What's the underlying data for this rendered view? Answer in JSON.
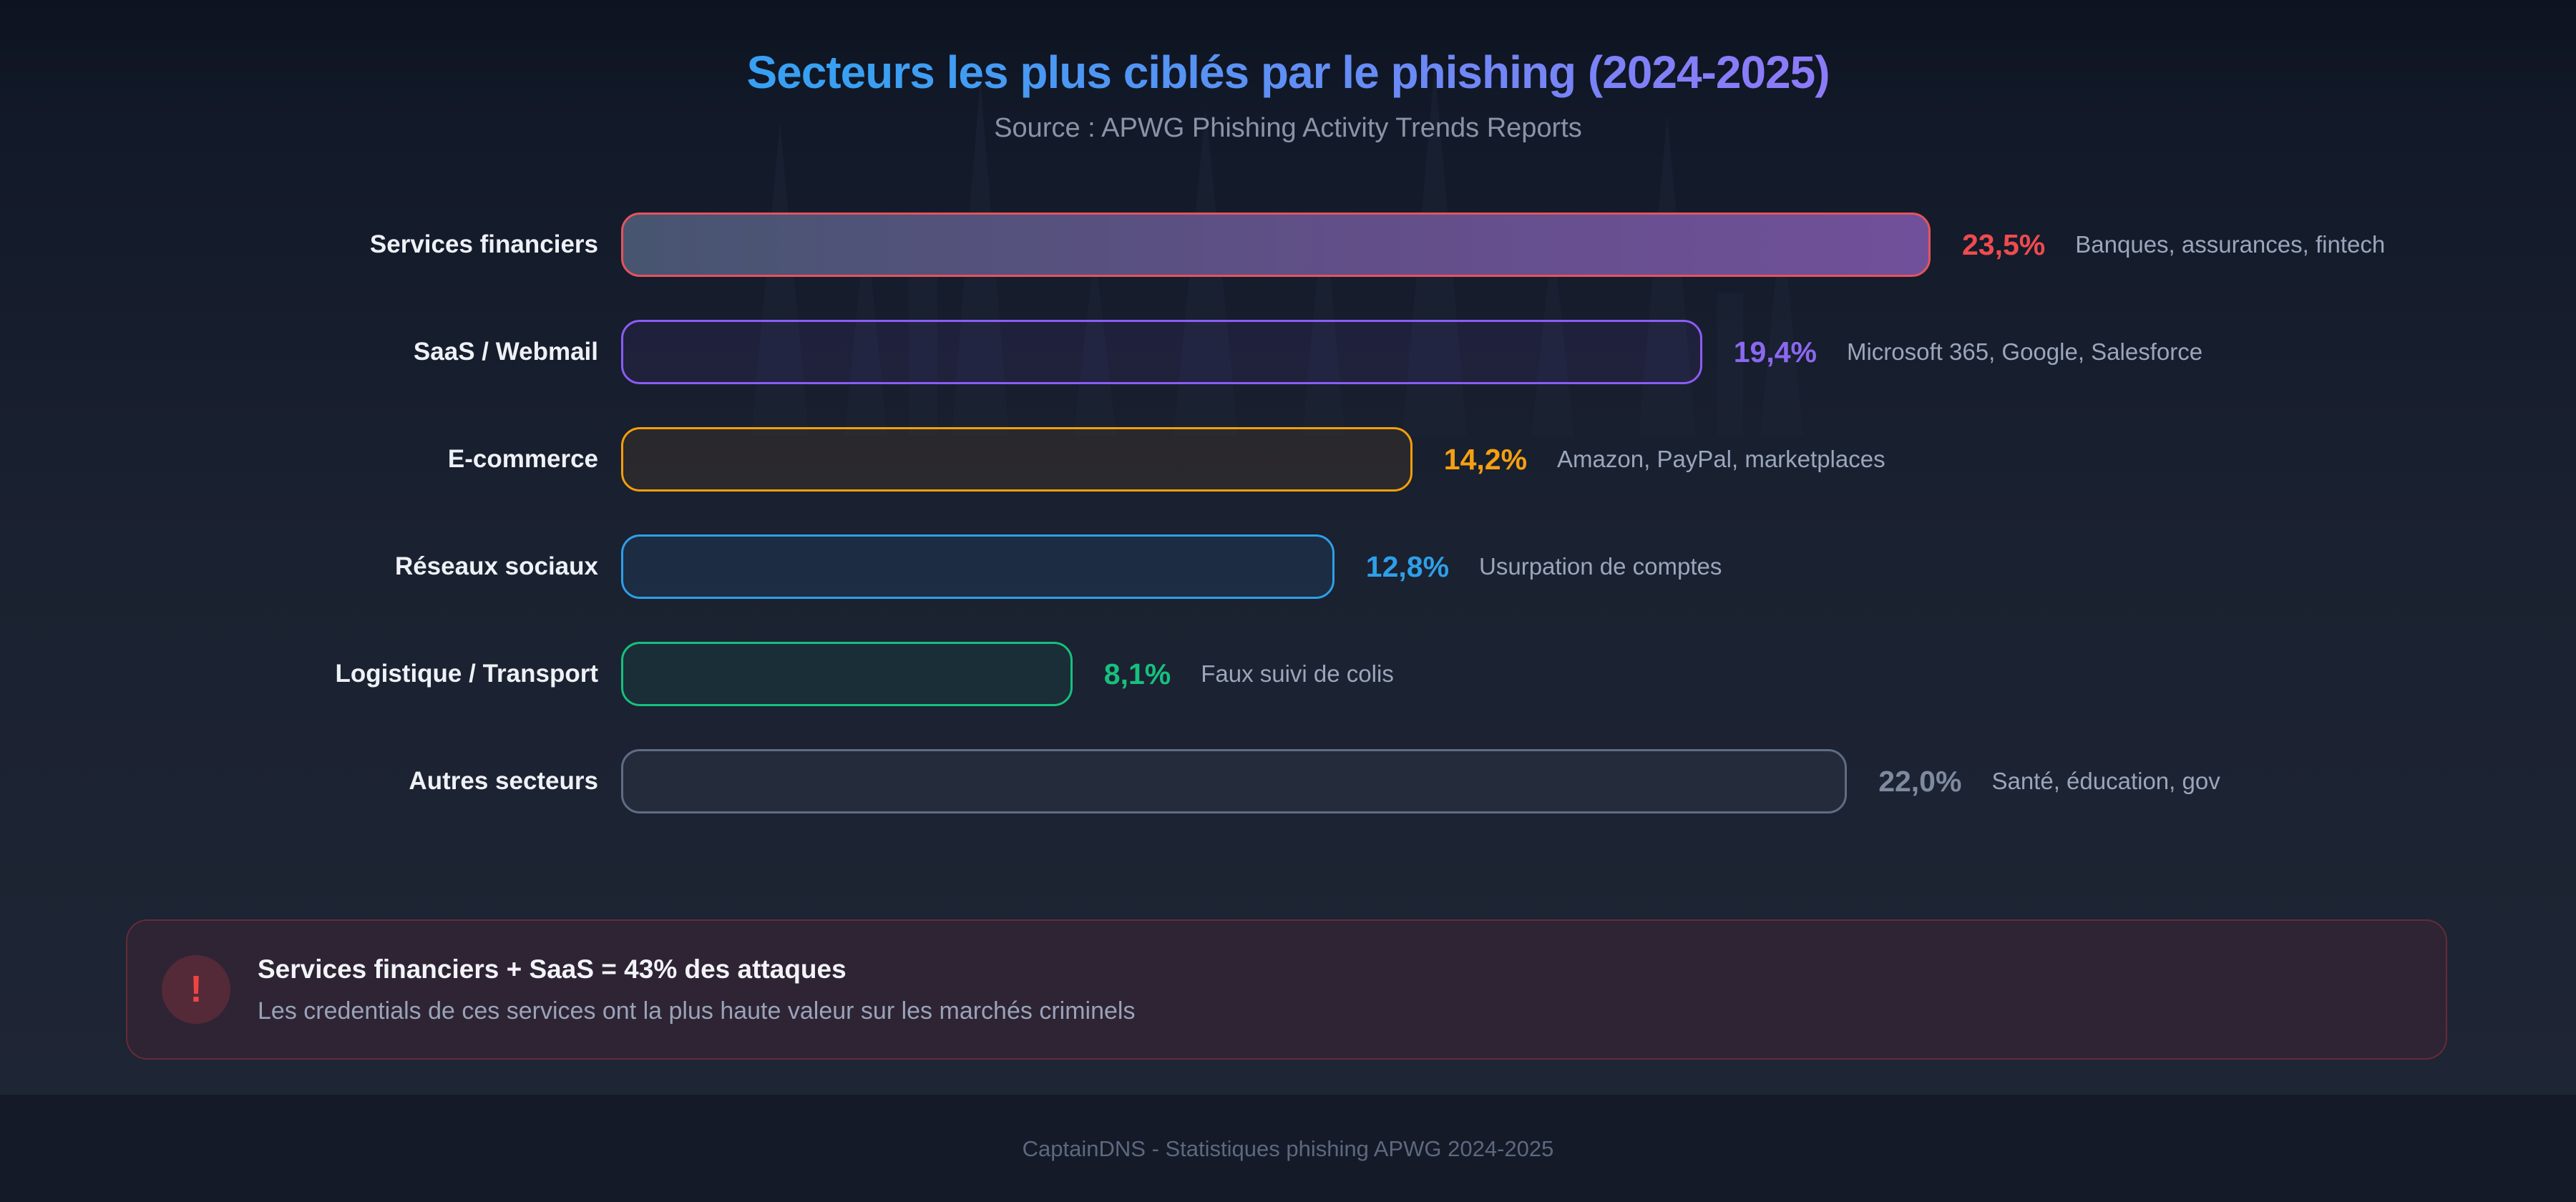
{
  "header": {
    "title": "Secteurs les plus ciblés par le phishing (2024-2025)",
    "subtitle": "Source : APWG Phishing Activity Trends Reports"
  },
  "sectors": [
    {
      "label": "Services financiers",
      "value": "23,5%",
      "value_num": 23.5,
      "desc": "Banques, assurances, fintech",
      "color": "#ef4b4f",
      "border": "#e5535e",
      "fill": "linear-gradient(90deg,#475570 0%,#614f88 55%,#71509a 100%)"
    },
    {
      "label": "SaaS / Webmail",
      "value": "19,4%",
      "value_num": 19.4,
      "desc": "Microsoft 365, Google, Salesforce",
      "color": "#8b68f0",
      "border": "#8b5cf6",
      "fill": "rgba(139,92,246,0.08)"
    },
    {
      "label": "E-commerce",
      "value": "14,2%",
      "value_num": 14.2,
      "desc": "Amazon, PayPal, marketplaces",
      "color": "#f5a011",
      "border": "#f59e0b",
      "fill": "rgba(245,158,11,0.08)"
    },
    {
      "label": "Réseaux sociaux",
      "value": "12,8%",
      "value_num": 12.8,
      "desc": "Usurpation de comptes",
      "color": "#2e9fe8",
      "border": "#2e9fe8",
      "fill": "rgba(46,159,232,0.10)"
    },
    {
      "label": "Logistique / Transport",
      "value": "8,1%",
      "value_num": 8.1,
      "desc": "Faux suivi de colis",
      "color": "#16c07e",
      "border": "#16c07e",
      "fill": "rgba(22,192,126,0.08)"
    },
    {
      "label": "Autres secteurs",
      "value": "22,0%",
      "value_num": 22.0,
      "desc": "Santé, éducation, gov",
      "color": "#7e8a9e",
      "border": "#5f6d84",
      "fill": "rgba(100,116,139,0.12)"
    }
  ],
  "callout": {
    "icon": "!",
    "title": "Services financiers + SaaS = 43% des attaques",
    "body": "Les credentials de ces services ont la plus haute valeur sur les marchés criminels",
    "accent": "#ef4444"
  },
  "footer": {
    "text": "CaptainDNS - Statistiques phishing APWG 2024-2025"
  },
  "colors": {
    "background_top": "#0d131f",
    "background_main": "#1d2433",
    "footer_band": "#141a27",
    "title_gradient_start": "#38a0f2",
    "title_gradient_end": "#8b7bf8",
    "label_text": "#eef1f6",
    "desc_text": "#9aa6bb",
    "subtitle_text": "#8a94a8"
  },
  "chart_data": {
    "type": "bar",
    "orientation": "horizontal",
    "title": "Secteurs les plus ciblés par le phishing (2024-2025)",
    "subtitle": "Source : APWG Phishing Activity Trends Reports",
    "categories": [
      "Services financiers",
      "SaaS / Webmail",
      "E-commerce",
      "Réseaux sociaux",
      "Logistique / Transport",
      "Autres secteurs"
    ],
    "values": [
      23.5,
      19.4,
      14.2,
      12.8,
      8.1,
      22.0
    ],
    "value_labels": [
      "23,5%",
      "19,4%",
      "14,2%",
      "12,8%",
      "8,1%",
      "22,0%"
    ],
    "annotations": [
      "Banques, assurances, fintech",
      "Microsoft 365, Google, Salesforce",
      "Amazon, PayPal, marketplaces",
      "Usurpation de comptes",
      "Faux suivi de colis",
      "Santé, éducation, gov"
    ],
    "xlim": [
      0,
      23.5
    ],
    "grid": false,
    "legend": false,
    "footnote": "Services financiers + SaaS = 43% des attaques — Les credentials de ces services ont la plus haute valeur sur les marchés criminels"
  }
}
